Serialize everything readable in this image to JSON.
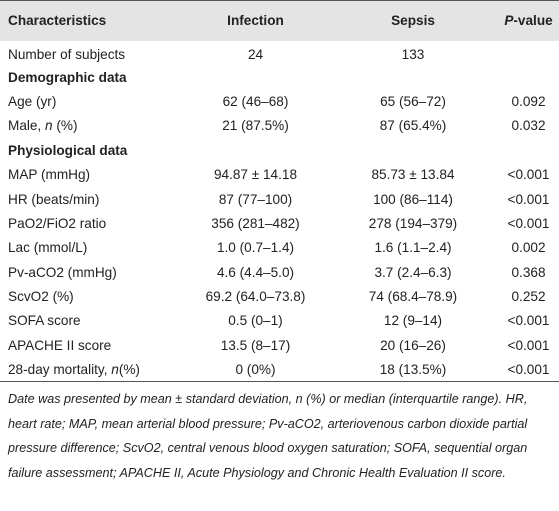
{
  "table": {
    "header": [
      "Characteristics",
      "Infection",
      "Sepsis",
      [
        "P",
        "-value"
      ]
    ],
    "rows": [
      [
        "Number of subjects",
        "24",
        "133"
      ],
      [
        "Demographic data"
      ],
      [
        "Age (yr)",
        "62 (46–68)",
        "65 (56–72)",
        "0.092"
      ],
      [
        [
          "Male, ",
          "n",
          " (%)"
        ],
        "21 (87.5%)",
        "87 (65.4%)",
        "0.032"
      ],
      [
        "Physiological data"
      ],
      [
        "MAP (mmHg)",
        "94.87 ± 14.18",
        "85.73 ± 13.84",
        "<0.001"
      ],
      [
        "HR (beats/min)",
        "87 (77–100)",
        "100 (86–114)",
        "<0.001"
      ],
      [
        "PaO2/FiO2 ratio",
        "356 (281–482)",
        "278 (194–379)",
        "<0.001"
      ],
      [
        "Lac (mmol/L)",
        "1.0 (0.7–1.4)",
        "1.6 (1.1–2.4)",
        "0.002"
      ],
      [
        "Pv-aCO2 (mmHg)",
        "4.6 (4.4–5.0)",
        "3.7 (2.4–6.3)",
        "0.368"
      ],
      [
        "ScvO2 (%)",
        "69.2 (64.0–73.8)",
        "74 (68.4–78.9)",
        "0.252"
      ],
      [
        "SOFA score",
        "0.5 (0–1)",
        "12 (9–14)",
        "<0.001"
      ],
      [
        "APACHE II score",
        "13.5 (8–17)",
        "20 (16–26)",
        "<0.001"
      ],
      [
        [
          "28-day mortality, ",
          "n",
          "(%)"
        ],
        "0 (0%)",
        "18 (13.5%)",
        "<0.001"
      ]
    ],
    "footnote": "Date was presented by mean ± standard deviation, n (%) or median (interquartile range). HR, heart rate; MAP, mean arterial blood pressure; Pv-aCO2, arteriovenous carbon dioxide partial pressure difference; ScvO2, central venous blood oxygen saturation; SOFA, sequential organ failure assessment; APACHE II, Acute Physiology and Chronic Health Evaluation II score."
  }
}
